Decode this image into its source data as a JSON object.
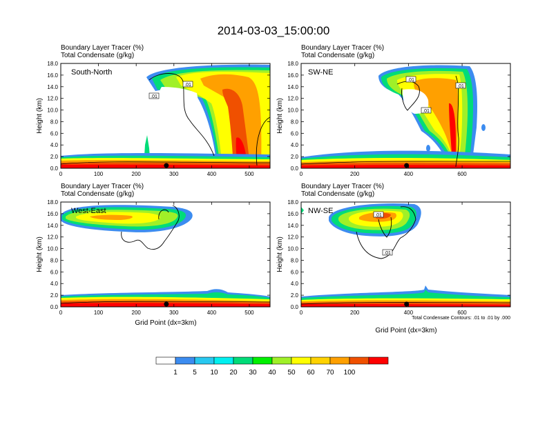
{
  "chart_data": {
    "type": "heatmap",
    "title": "2014-03-03_15:00:00",
    "panel_label_line1": "Boundary Layer Tracer  (%)",
    "panel_label_line2": "Total Condensate  (g/kg)",
    "ylabel": "Height (km)",
    "xlabel": "Grid Point (dx=3km)",
    "ylim": [
      0,
      18
    ],
    "yticks": [
      "0.0",
      "2.0",
      "4.0",
      "6.0",
      "8.0",
      "10.0",
      "12.0",
      "14.0",
      "16.0",
      "18.0"
    ],
    "contour_note": "Total Condensate Contours: .01 to .01 by .000",
    "contour_label": ".01",
    "colorbar": {
      "levels": [
        "1",
        "5",
        "10",
        "20",
        "30",
        "40",
        "50",
        "60",
        "70",
        "100"
      ],
      "colors": [
        "#ffffff",
        "#3c8cf0",
        "#28c8f0",
        "#00f0f0",
        "#00dc78",
        "#00f000",
        "#a0f028",
        "#ffff00",
        "#ffd200",
        "#ffa000",
        "#f05000",
        "#ff0000"
      ]
    },
    "panels": [
      {
        "name": "South-North",
        "xlim": [
          0,
          555
        ],
        "xticks": [
          0,
          100,
          200,
          300,
          400,
          500
        ],
        "marker_x": 280,
        "show_xlabel": false,
        "show_note": false
      },
      {
        "name": "SW-NE",
        "xlim": [
          0,
          780
        ],
        "xticks": [
          0,
          200,
          400,
          600
        ],
        "marker_x": 393,
        "show_xlabel": false,
        "show_note": false
      },
      {
        "name": "West-East",
        "xlim": [
          0,
          555
        ],
        "xticks": [
          0,
          100,
          200,
          300,
          400,
          500
        ],
        "marker_x": 280,
        "show_xlabel": true,
        "show_note": false
      },
      {
        "name": "NW-SE",
        "xlim": [
          0,
          780
        ],
        "xticks": [
          0,
          200,
          400,
          600
        ],
        "marker_x": 393,
        "show_xlabel": true,
        "show_note": true
      }
    ]
  }
}
